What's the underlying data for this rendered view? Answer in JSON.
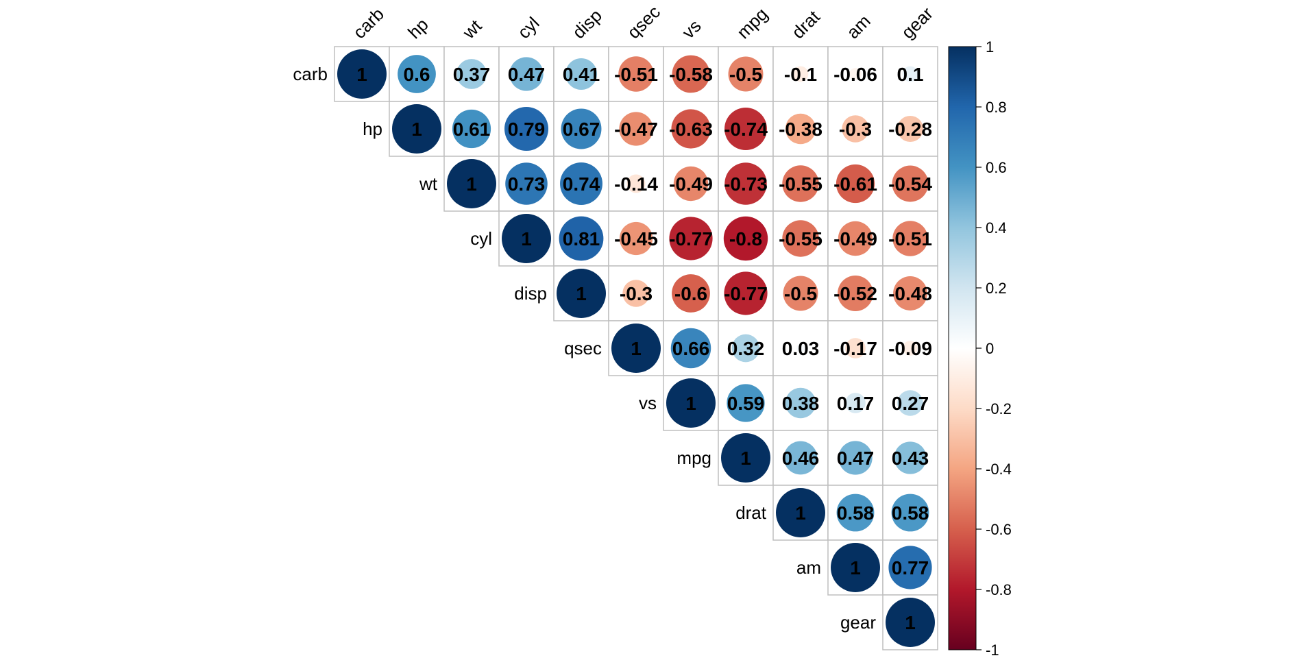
{
  "chart_data": {
    "type": "heatmap",
    "style": "corrplot-upper-circle-with-coefficients",
    "variables": [
      "carb",
      "hp",
      "wt",
      "cyl",
      "disp",
      "qsec",
      "vs",
      "mpg",
      "drat",
      "am",
      "gear"
    ],
    "matrix_upper": [
      [
        "1",
        "0.6",
        "0.37",
        "0.47",
        "0.41",
        "-0.51",
        "-0.58",
        "-0.5",
        "-0.1",
        "-0.06",
        "0.1"
      ],
      [
        "1",
        "0.61",
        "0.79",
        "0.67",
        "-0.47",
        "-0.63",
        "-0.74",
        "-0.38",
        "-0.3",
        "-0.28"
      ],
      [
        "1",
        "0.73",
        "0.74",
        "-0.14",
        "-0.49",
        "-0.73",
        "-0.55",
        "-0.61",
        "-0.54"
      ],
      [
        "1",
        "0.81",
        "-0.45",
        "-0.77",
        "-0.8",
        "-0.55",
        "-0.49",
        "-0.51"
      ],
      [
        "1",
        "-0.3",
        "-0.6",
        "-0.77",
        "-0.5",
        "-0.52",
        "-0.48"
      ],
      [
        "1",
        "0.66",
        "0.32",
        "0.03",
        "-0.17",
        "-0.09"
      ],
      [
        "1",
        "0.59",
        "0.38",
        "0.17",
        "0.27"
      ],
      [
        "1",
        "0.46",
        "0.47",
        "0.43"
      ],
      [
        "1",
        "0.58",
        "0.58"
      ],
      [
        "1",
        "0.77"
      ],
      [
        "1"
      ]
    ],
    "colorbar": {
      "range": [
        -1,
        1
      ],
      "ticks": [
        "1",
        "0.8",
        "0.6",
        "0.4",
        "0.2",
        "0",
        "-0.2",
        "-0.4",
        "-0.6",
        "-0.8",
        "-1"
      ],
      "colors": [
        "#67001F",
        "#B2182B",
        "#D6604D",
        "#F4A582",
        "#FDDBC7",
        "#FFFFFF",
        "#D1E5F0",
        "#92C5DE",
        "#4393C3",
        "#2166AC",
        "#053061"
      ]
    },
    "title": "",
    "xlabel": "",
    "ylabel": "",
    "grid": true,
    "legend": "right"
  }
}
